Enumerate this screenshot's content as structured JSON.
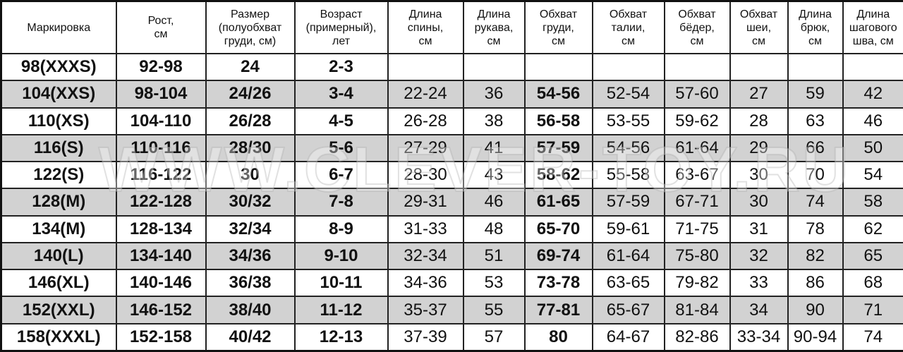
{
  "headers": [
    "Маркировка",
    "Рост,\nсм",
    "Размер\n(полуобхват\nгруди, см)",
    "Возраст\n(примерный),\nлет",
    "Длина\nспины,\nсм",
    "Длина\nрукава,\nсм",
    "Обхват\nгруди,\nсм",
    "Обхват\nталии,\nсм",
    "Обхват\nбёдер,\nсм",
    "Обхват\nшеи,\nсм",
    "Длина\nбрюк,\nсм",
    "Длина\nшагового\nшва, см"
  ],
  "rows": [
    [
      "98(XXXS)",
      "92-98",
      "24",
      "2-3",
      "",
      "",
      "",
      "",
      "",
      "",
      "",
      ""
    ],
    [
      "104(XXS)",
      "98-104",
      "24/26",
      "3-4",
      "22-24",
      "36",
      "54-56",
      "52-54",
      "57-60",
      "27",
      "59",
      "42"
    ],
    [
      "110(XS)",
      "104-110",
      "26/28",
      "4-5",
      "26-28",
      "38",
      "56-58",
      "53-55",
      "59-62",
      "28",
      "63",
      "46"
    ],
    [
      "116(S)",
      "110-116",
      "28/30",
      "5-6",
      "27-29",
      "41",
      "57-59",
      "54-56",
      "61-64",
      "29",
      "66",
      "50"
    ],
    [
      "122(S)",
      "116-122",
      "30",
      "6-7",
      "28-30",
      "43",
      "58-62",
      "55-58",
      "63-67",
      "30",
      "70",
      "54"
    ],
    [
      "128(M)",
      "122-128",
      "30/32",
      "7-8",
      "29-31",
      "46",
      "61-65",
      "57-59",
      "67-71",
      "30",
      "74",
      "58"
    ],
    [
      "134(M)",
      "128-134",
      "32/34",
      "8-9",
      "31-33",
      "48",
      "65-70",
      "59-61",
      "71-75",
      "31",
      "78",
      "62"
    ],
    [
      "140(L)",
      "134-140",
      "34/36",
      "9-10",
      "32-34",
      "51",
      "69-74",
      "61-64",
      "75-80",
      "32",
      "82",
      "65"
    ],
    [
      "146(XL)",
      "140-146",
      "36/38",
      "10-11",
      "34-36",
      "53",
      "73-78",
      "63-65",
      "79-82",
      "33",
      "86",
      "68"
    ],
    [
      "152(XXL)",
      "146-152",
      "38/40",
      "11-12",
      "35-37",
      "55",
      "77-81",
      "65-67",
      "81-84",
      "34",
      "90",
      "71"
    ],
    [
      "158(XXXL)",
      "152-158",
      "40/42",
      "12-13",
      "37-39",
      "57",
      "80",
      "64-67",
      "82-86",
      "33-34",
      "90-94",
      "74"
    ]
  ],
  "watermark": "WWW.CLEVER-TOY.RU",
  "colors": {
    "shaded_row": "#d2d2d2",
    "border": "#222222"
  }
}
